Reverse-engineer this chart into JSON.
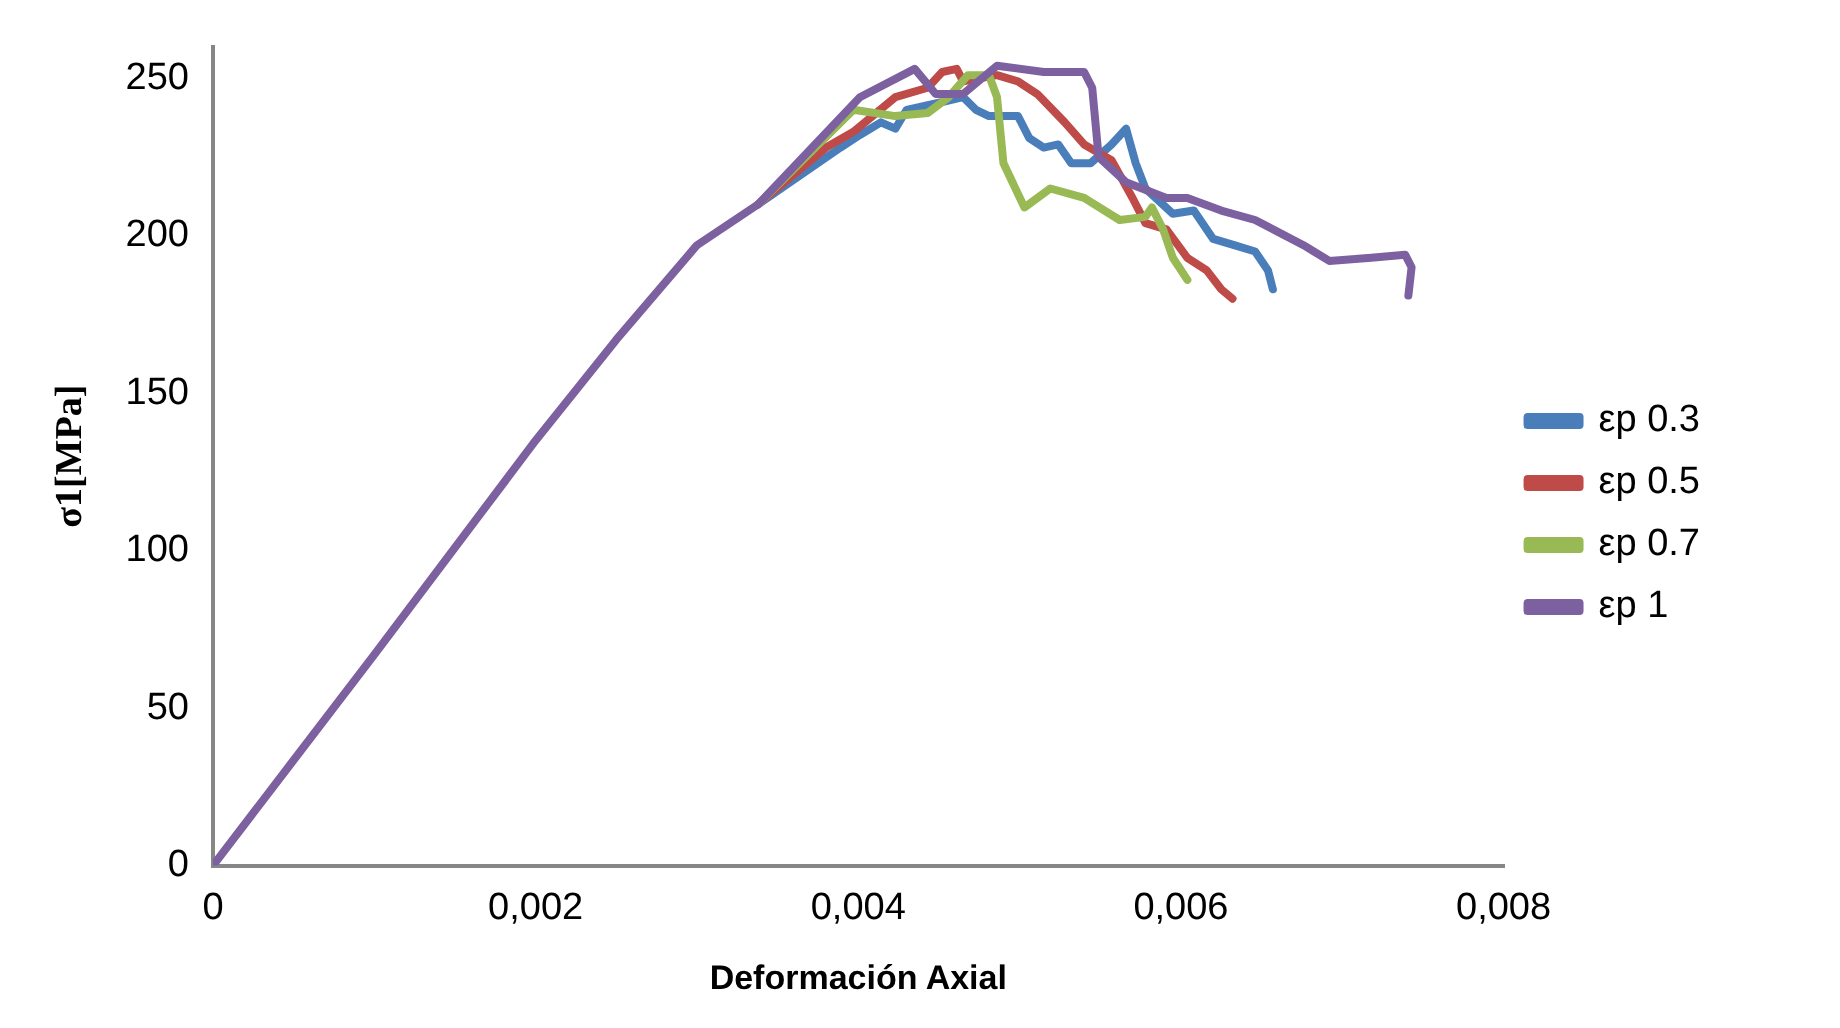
{
  "chart_data": {
    "type": "line",
    "xlabel": "Deformación Axial",
    "ylabel": "σ1[MPa]",
    "xlim": [
      0,
      0.008
    ],
    "xticks": [
      0,
      {
        "value": 0.002,
        "label": "0,002"
      },
      {
        "value": 0.004,
        "label": "0,004"
      },
      {
        "value": 0.006,
        "label": "0,006"
      },
      {
        "value": 0.008,
        "label": "0,008"
      }
    ],
    "ylim": [
      0,
      260
    ],
    "yticks": [
      0,
      50,
      100,
      150,
      200,
      250
    ],
    "grid": false,
    "legend": "right",
    "marker": "none",
    "line_style": "solid",
    "series": [
      {
        "name": "εp 0.3",
        "color": "#4a7ebb",
        "x": [
          0.00338,
          0.00389,
          0.00401,
          0.00414,
          0.00423,
          0.0043,
          0.00448,
          0.00465,
          0.00473,
          0.00481,
          0.00499,
          0.00506,
          0.00515,
          0.00524,
          0.00532,
          0.00544,
          0.00557,
          0.00566,
          0.00572,
          0.00578,
          0.00595,
          0.00608,
          0.0062,
          0.00633,
          0.00646,
          0.00654,
          0.00657
        ],
        "values": [
          210,
          228,
          232,
          236,
          234,
          240,
          242,
          244,
          240,
          238,
          238,
          231,
          228,
          229,
          223,
          223,
          229,
          234,
          223,
          215,
          207,
          208,
          199,
          197,
          195,
          189,
          183
        ]
      },
      {
        "name": "εp 0.5",
        "color": "#be4b48",
        "x": [
          0.00338,
          0.0038,
          0.00397,
          0.00423,
          0.00443,
          0.00452,
          0.00461,
          0.00465,
          0.00486,
          0.00499,
          0.00511,
          0.00528,
          0.0054,
          0.00557,
          0.0057,
          0.00578,
          0.00591,
          0.00604,
          0.00616,
          0.00625,
          0.00632
        ],
        "values": [
          210,
          228,
          233,
          244,
          247,
          252,
          253,
          249,
          251,
          249,
          245,
          236,
          229,
          224,
          212,
          204,
          202,
          193,
          189,
          183,
          180
        ]
      },
      {
        "name": "εp 0.7",
        "color": "#98b954",
        "x": [
          0.00338,
          0.00397,
          0.00423,
          0.00443,
          0.00456,
          0.00468,
          0.00481,
          0.00486,
          0.0049,
          0.00503,
          0.00519,
          0.0054,
          0.00562,
          0.00578,
          0.00582,
          0.00589,
          0.00595,
          0.00604
        ],
        "values": [
          210,
          240,
          238,
          239,
          244,
          251,
          251,
          244,
          223,
          209,
          215,
          212,
          205,
          206,
          209,
          202,
          193,
          186
        ]
      },
      {
        "name": "εp 1",
        "color": "#7d60a0",
        "x": [
          0,
          0.001,
          0.002,
          0.0025,
          0.003,
          0.00338,
          0.00401,
          0.00435,
          0.00448,
          0.00465,
          0.00486,
          0.00515,
          0.0054,
          0.00545,
          0.00549,
          0.00566,
          0.00591,
          0.00604,
          0.00625,
          0.00646,
          0.00676,
          0.00692,
          0.00718,
          0.00739,
          0.00743,
          0.00741
        ],
        "values": [
          0,
          67,
          135,
          167,
          197,
          210,
          244,
          253,
          245,
          245,
          254,
          252,
          252,
          247,
          225,
          217,
          212,
          212,
          208,
          205,
          197,
          192,
          193,
          194,
          190,
          181
        ]
      }
    ]
  }
}
